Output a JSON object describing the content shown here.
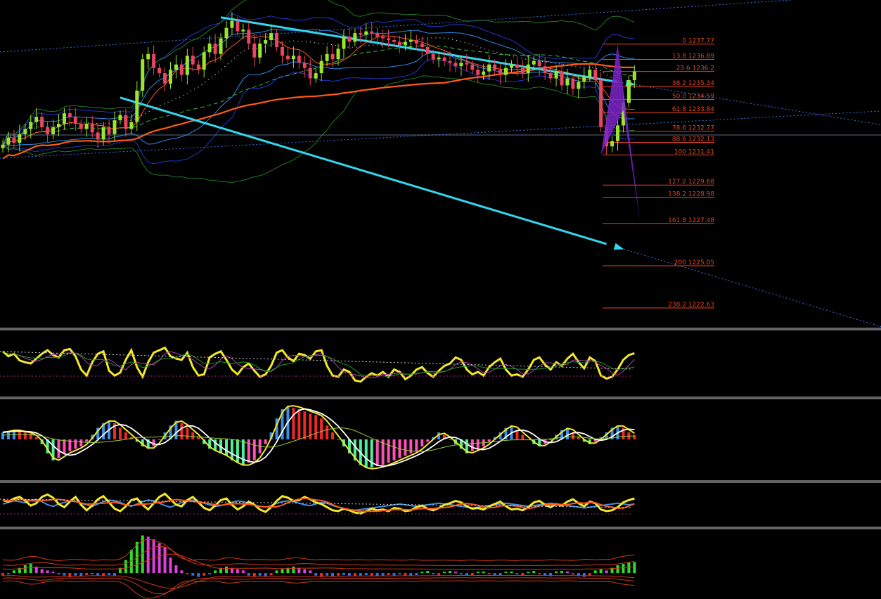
{
  "colors": {
    "background": "#000000",
    "bull": "#9AE62E",
    "bear": "#E8455E",
    "channel": "#33D6F0",
    "ma_orange": "#FF5A14",
    "fib": "#E8451E",
    "fib_text": "#E8451E",
    "harmonic": "#7A24C8",
    "yellow": "#F2E82A",
    "macd_blue": "#3D8FE8",
    "macd_red": "#F02828",
    "macd_green": "#4FF09A",
    "macd_pink": "#FF4FB8",
    "hist_green": "#2AE02A",
    "hist_magenta": "#E040E0",
    "hist_blue": "#3A6CE8",
    "separator": "#C8C8C8"
  },
  "chart_data": [
    {
      "type": "candlestick",
      "title": "",
      "ylim": [
        1221.5,
        1240.3
      ],
      "grid": false,
      "fib_levels": [
        {
          "ratio": "0",
          "price": 1237.77
        },
        {
          "ratio": "13.8",
          "price": 1236.89
        },
        {
          "ratio": "23.6",
          "price": 1236.2
        },
        {
          "ratio": "38.2",
          "price": 1235.34
        },
        {
          "ratio": "50.0",
          "price": 1234.59
        },
        {
          "ratio": "61.8",
          "price": 1233.84
        },
        {
          "ratio": "78.6",
          "price": 1232.77
        },
        {
          "ratio": "88.6",
          "price": 1232.13
        },
        {
          "ratio": "100",
          "price": 1231.41
        },
        {
          "ratio": "127.2",
          "price": 1229.68
        },
        {
          "ratio": "138.2",
          "price": 1228.98
        },
        {
          "ratio": "161.8",
          "price": 1227.48
        },
        {
          "ratio": "200",
          "price": 1225.05
        },
        {
          "ratio": "238.2",
          "price": 1222.63
        }
      ],
      "fib_labels": [
        "0 1237.77",
        "13.8 1236.89",
        "23.6 1236.2",
        "38.2 1235.34",
        "50.0 1234.59",
        "61.8 1233.84",
        "78.6 1232.77",
        "88.6 1232.13",
        "100 1231.41",
        "127.2 1229.68",
        "138.2 1228.98",
        "161.8 1227.48",
        "200 1225.05",
        "238.2 1222.63"
      ],
      "candles_close": [
        1232.0,
        1232.4,
        1232.1,
        1232.6,
        1232.9,
        1233.3,
        1233.6,
        1233.0,
        1232.6,
        1233.0,
        1233.2,
        1233.8,
        1233.6,
        1233.2,
        1232.9,
        1233.2,
        1232.7,
        1232.3,
        1233.0,
        1232.6,
        1233.4,
        1233.7,
        1232.9,
        1233.3,
        1235.1,
        1236.9,
        1237.2,
        1236.4,
        1236.1,
        1235.5,
        1236.3,
        1236.6,
        1236.0,
        1237.1,
        1236.6,
        1236.3,
        1237.3,
        1237.8,
        1237.2,
        1238.1,
        1238.7,
        1239.1,
        1238.5,
        1238.6,
        1237.8,
        1237.0,
        1237.8,
        1238.0,
        1238.4,
        1237.6,
        1237.1,
        1236.9,
        1237.1,
        1236.7,
        1236.4,
        1235.8,
        1236.1,
        1236.8,
        1237.2,
        1236.9,
        1237.5,
        1238.2,
        1237.9,
        1238.4,
        1238.3,
        1238.5,
        1238.4,
        1238.2,
        1238.1,
        1238.0,
        1237.9,
        1237.7,
        1237.9,
        1238.0,
        1237.8,
        1237.6,
        1237.2,
        1236.9,
        1237.0,
        1236.8,
        1236.7,
        1236.5,
        1236.7,
        1236.6,
        1236.3,
        1236.0,
        1236.2,
        1236.6,
        1236.3,
        1236.0,
        1236.4,
        1236.6,
        1236.4,
        1236.1,
        1236.6,
        1236.8,
        1236.5,
        1236.1,
        1235.8,
        1236.2,
        1235.4,
        1235.8,
        1235.2,
        1235.6,
        1235.9,
        1236.3,
        1235.7,
        1233.0,
        1231.9,
        1232.2,
        1233.1,
        1234.4,
        1235.7,
        1236.2
      ],
      "harmonic_points": [
        {
          "bar": 107,
          "price": 1231.41
        },
        {
          "bar": 110,
          "price": 1237.77
        },
        {
          "bar": 111,
          "price": 1234.0
        },
        {
          "bar": 114,
          "price": 1227.6
        }
      ],
      "channel_upper": [
        {
          "bar": 39,
          "price": 1239.3
        },
        {
          "bar": 110,
          "price": 1235.6
        }
      ],
      "channel_lower": [
        {
          "bar": 21,
          "price": 1234.7
        },
        {
          "bar": 108,
          "price": 1226.3
        }
      ]
    },
    {
      "type": "line",
      "title": "",
      "ylim": [
        0,
        100
      ],
      "series": [
        {
          "values": [
            70,
            62,
            66,
            55,
            52,
            50,
            58,
            66,
            72,
            64,
            60,
            72,
            74,
            62,
            40,
            30,
            52,
            66,
            70,
            38,
            30,
            35,
            56,
            72,
            44,
            28,
            52,
            68,
            72,
            76,
            62,
            58,
            56,
            68,
            44,
            30,
            32,
            60,
            66,
            70,
            56,
            40,
            32,
            44,
            50,
            38,
            28,
            32,
            46,
            68,
            72,
            60,
            54,
            66,
            64,
            58,
            70,
            72,
            46,
            30,
            28,
            40,
            36,
            22,
            20,
            28,
            34,
            30,
            36,
            28,
            40,
            36,
            24,
            30,
            40,
            44,
            34,
            28,
            38,
            46,
            50,
            60,
            56,
            40,
            32,
            36,
            30,
            44,
            52,
            58,
            40,
            30,
            32,
            28,
            40,
            56,
            60,
            48,
            40,
            52,
            46,
            58,
            66,
            52,
            42,
            60,
            54,
            30,
            25,
            28,
            40,
            56,
            64,
            67
          ]
        }
      ]
    },
    {
      "type": "bar",
      "title": "",
      "ylim": [
        -1.6,
        1.6
      ],
      "series": [
        {
          "values": [
            0.3,
            0.35,
            0.4,
            0.35,
            0.3,
            0.25,
            0.1,
            -0.2,
            -0.6,
            -0.9,
            -0.8,
            -0.6,
            -0.5,
            -0.4,
            -0.3,
            -0.1,
            0.2,
            0.5,
            0.7,
            0.8,
            0.7,
            0.5,
            0.3,
            0.1,
            -0.1,
            -0.3,
            -0.4,
            -0.3,
            0.0,
            0.3,
            0.6,
            0.8,
            0.7,
            0.5,
            0.3,
            0.1,
            -0.2,
            -0.4,
            -0.5,
            -0.6,
            -0.7,
            -0.9,
            -1.0,
            -1.1,
            -1.0,
            -0.9,
            -0.6,
            -0.2,
            0.3,
            0.9,
            1.3,
            1.4,
            1.35,
            1.3,
            1.2,
            1.1,
            1.05,
            0.9,
            0.6,
            0.3,
            0.0,
            -0.3,
            -0.6,
            -0.9,
            -1.1,
            -1.2,
            -1.2,
            -1.15,
            -1.1,
            -1.0,
            -0.9,
            -0.8,
            -0.7,
            -0.6,
            -0.5,
            -0.3,
            -0.1,
            0.1,
            0.3,
            0.2,
            0.0,
            -0.2,
            -0.4,
            -0.6,
            -0.5,
            -0.4,
            -0.3,
            -0.1,
            0.1,
            0.3,
            0.5,
            0.6,
            0.4,
            0.2,
            0.0,
            -0.2,
            -0.3,
            -0.2,
            0.0,
            0.2,
            0.4,
            0.5,
            0.3,
            0.1,
            -0.1,
            -0.2,
            -0.1,
            0.1,
            0.3,
            0.5,
            0.6,
            0.5,
            0.3,
            0.2
          ]
        }
      ]
    },
    {
      "type": "line",
      "title": "",
      "ylim": [
        0,
        100
      ],
      "series": [
        {
          "values": [
            52,
            56,
            60,
            58,
            55,
            62,
            64,
            58,
            50,
            46,
            52,
            56,
            60,
            58,
            54,
            50,
            46,
            52,
            58,
            62,
            60,
            56,
            50,
            46,
            52,
            58,
            62,
            60,
            54,
            48,
            44,
            50,
            56,
            60,
            62,
            58,
            54,
            50,
            46,
            48,
            52,
            56,
            60,
            58,
            54,
            50,
            46,
            44,
            48,
            54,
            58,
            60,
            58,
            54,
            50,
            48,
            52,
            56,
            54,
            48,
            44,
            40,
            38,
            36,
            38,
            40,
            42,
            44,
            46,
            48,
            50,
            52,
            50,
            48,
            46,
            48,
            50,
            52,
            54,
            52,
            50,
            48,
            46,
            44,
            42,
            44,
            46,
            48,
            50,
            52,
            54,
            52,
            50,
            48,
            46,
            48,
            50,
            52,
            54,
            52,
            50,
            48,
            46,
            44,
            42,
            44,
            46,
            48,
            50,
            52,
            54,
            52,
            50,
            52
          ]
        },
        {
          "values": [
            62,
            58,
            66,
            70,
            60,
            48,
            54,
            70,
            76,
            68,
            52,
            44,
            58,
            70,
            50,
            36,
            48,
            64,
            72,
            56,
            40,
            34,
            46,
            62,
            66,
            50,
            38,
            54,
            70,
            78,
            64,
            50,
            46,
            62,
            70,
            56,
            42,
            36,
            48,
            62,
            66,
            50,
            38,
            46,
            58,
            50,
            38,
            32,
            44,
            60,
            72,
            68,
            60,
            62,
            70,
            64,
            56,
            52,
            44,
            36,
            34,
            40,
            36,
            30,
            28,
            34,
            40,
            36,
            38,
            34,
            42,
            40,
            34,
            36,
            44,
            48,
            40,
            36,
            42,
            50,
            54,
            60,
            56,
            46,
            40,
            42,
            38,
            46,
            52,
            58,
            46,
            38,
            40,
            36,
            44,
            56,
            60,
            50,
            44,
            52,
            48,
            58,
            64,
            54,
            46,
            58,
            54,
            38,
            34,
            36,
            44,
            56,
            62,
            66
          ]
        }
      ]
    },
    {
      "type": "bar",
      "title": "",
      "ylim": [
        -1.0,
        1.6
      ],
      "series": [
        {
          "values": [
            -0.1,
            -0.05,
            0.1,
            0.2,
            0.3,
            0.35,
            0.25,
            0.15,
            0.1,
            0.05,
            -0.05,
            -0.1,
            -0.15,
            -0.1,
            -0.12,
            -0.08,
            -0.05,
            -0.1,
            -0.12,
            -0.08,
            -0.1,
            0.2,
            0.5,
            0.9,
            1.2,
            1.45,
            1.4,
            1.3,
            1.15,
            1.0,
            0.6,
            0.3,
            0.1,
            -0.05,
            -0.1,
            -0.15,
            -0.1,
            -0.05,
            0.1,
            0.2,
            0.25,
            0.2,
            0.15,
            0.1,
            -0.1,
            -0.15,
            -0.1,
            -0.12,
            -0.08,
            0.1,
            0.15,
            0.2,
            0.25,
            0.2,
            0.15,
            0.1,
            -0.1,
            -0.15,
            -0.1,
            -0.12,
            -0.1,
            -0.08,
            -0.1,
            -0.12,
            -0.1,
            -0.08,
            -0.1,
            -0.12,
            -0.1,
            -0.08,
            -0.1,
            -0.05,
            -0.1,
            -0.12,
            -0.08,
            0.05,
            0.08,
            -0.05,
            -0.1,
            0.05,
            0.08,
            0.05,
            -0.05,
            -0.1,
            -0.08,
            0.05,
            0.06,
            -0.05,
            -0.08,
            -0.1,
            0.05,
            0.06,
            -0.05,
            -0.1,
            0.05,
            0.08,
            -0.05,
            -0.1,
            -0.12,
            0.06,
            0.08,
            0.06,
            -0.06,
            -0.12,
            -0.15,
            -0.1,
            0.1,
            0.15,
            0.1,
            0.2,
            0.3,
            0.35,
            0.4,
            0.42
          ]
        }
      ]
    }
  ]
}
